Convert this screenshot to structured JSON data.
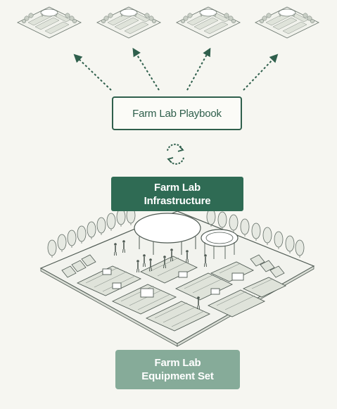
{
  "playbook": {
    "label": "Farm Lab Playbook"
  },
  "infrastructure": {
    "line1": "Farm Lab",
    "line2": "Infrastructure"
  },
  "equipment": {
    "line1": "Farm Lab",
    "line2": "Equipment Set"
  },
  "icons": {
    "sync": "refresh-cycle-icon"
  },
  "colors": {
    "dark_green": "#2f6b54",
    "outline_green": "#2f5f4c",
    "light_green": "#86ab99",
    "background": "#f6f6f1"
  }
}
